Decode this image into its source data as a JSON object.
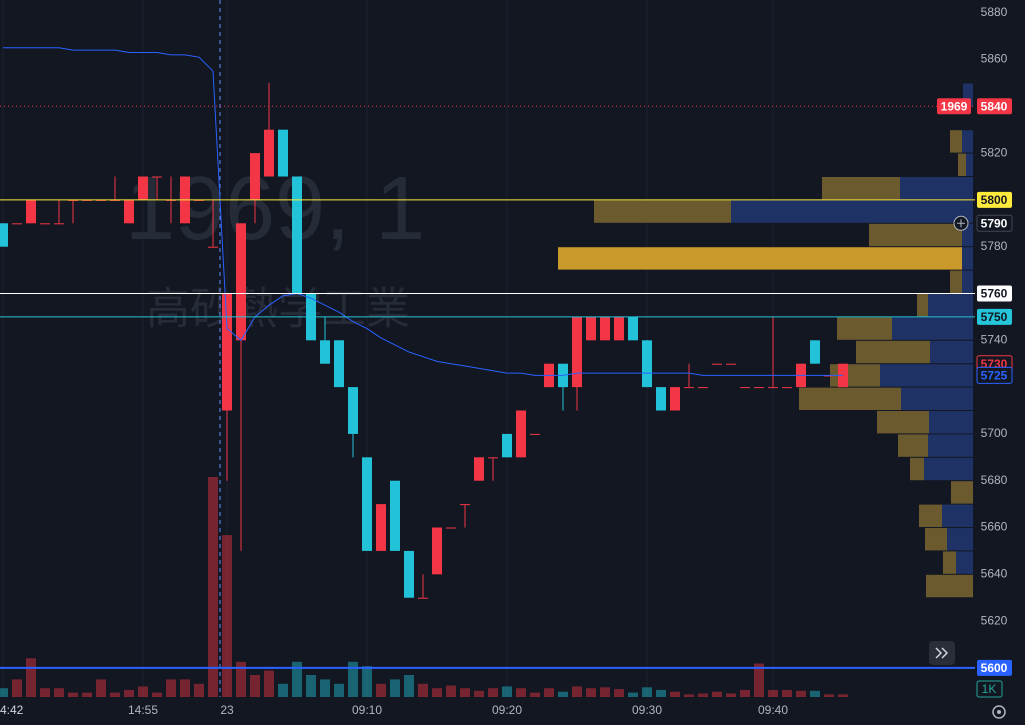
{
  "chart_data": {
    "type": "candlestick",
    "watermark": [
      "1969, 1",
      "高砂熱学工業"
    ],
    "categories": [
      "4:42",
      null,
      null,
      null,
      null,
      null,
      null,
      null,
      null,
      null,
      "14:55",
      null,
      null,
      null,
      null,
      null,
      "23",
      null,
      null,
      null,
      null,
      null,
      null,
      null,
      null,
      null,
      "09:10",
      null,
      null,
      null,
      null,
      null,
      null,
      null,
      null,
      null,
      "09:20",
      null,
      null,
      null,
      null,
      null,
      null,
      null,
      null,
      null,
      "09:30",
      null,
      null,
      null,
      null,
      null,
      null,
      null,
      null,
      "09:40",
      null,
      null,
      null,
      null,
      null
    ],
    "open": [
      5790,
      5790,
      5790,
      5790,
      5790,
      5800,
      5800,
      5800,
      5800,
      5790,
      5800,
      5810,
      5800,
      5790,
      5800,
      5780,
      5710,
      5740,
      5800,
      5810,
      5830,
      5810,
      5760,
      5740,
      5740,
      5720,
      5690,
      5650,
      5680,
      5650,
      5630,
      5640,
      5660,
      5670,
      5680,
      5690,
      5700,
      5690,
      5700,
      5720,
      5730,
      5720,
      5740,
      5740,
      5740,
      5750,
      5740,
      5720,
      5710,
      5720,
      5720,
      5730,
      5730,
      5720,
      5720,
      5720,
      5720,
      5720,
      5740,
      5725,
      5720
    ],
    "high": [
      5790,
      5790,
      5800,
      5790,
      5800,
      5800,
      5800,
      5800,
      5810,
      5800,
      5810,
      5810,
      5810,
      5810,
      5800,
      5800,
      5760,
      5790,
      5820,
      5850,
      5830,
      5810,
      5760,
      5750,
      5740,
      5720,
      5690,
      5670,
      5680,
      5650,
      5640,
      5660,
      5660,
      5670,
      5690,
      5690,
      5700,
      5710,
      5700,
      5730,
      5730,
      5750,
      5750,
      5750,
      5750,
      5750,
      5740,
      5720,
      5720,
      5730,
      5720,
      5730,
      5730,
      5720,
      5720,
      5750,
      5720,
      5730,
      5740,
      5725,
      5730
    ],
    "low": [
      5780,
      5790,
      5790,
      5790,
      5790,
      5790,
      5800,
      5800,
      5800,
      5790,
      5800,
      5800,
      5790,
      5790,
      5800,
      5780,
      5680,
      5650,
      5790,
      5810,
      5810,
      5760,
      5740,
      5730,
      5720,
      5690,
      5650,
      5650,
      5650,
      5630,
      5630,
      5640,
      5660,
      5660,
      5680,
      5680,
      5690,
      5690,
      5700,
      5720,
      5710,
      5710,
      5740,
      5740,
      5740,
      5740,
      5720,
      5710,
      5710,
      5720,
      5720,
      5730,
      5730,
      5720,
      5720,
      5720,
      5720,
      5720,
      5730,
      5725,
      5720
    ],
    "close": [
      5780,
      5790,
      5800,
      5790,
      5790,
      5800,
      5800,
      5800,
      5800,
      5800,
      5810,
      5810,
      5800,
      5810,
      5800,
      5780,
      5760,
      5790,
      5820,
      5830,
      5810,
      5760,
      5740,
      5730,
      5720,
      5700,
      5650,
      5670,
      5650,
      5630,
      5630,
      5660,
      5660,
      5670,
      5690,
      5690,
      5690,
      5710,
      5700,
      5730,
      5720,
      5750,
      5750,
      5750,
      5750,
      5740,
      5720,
      5710,
      5720,
      5720,
      5720,
      5730,
      5730,
      5720,
      5720,
      5720,
      5720,
      5730,
      5730,
      5725,
      5730
    ],
    "vwap": [
      5865,
      5865,
      5865,
      5865,
      5865,
      5864,
      5864,
      5864,
      5864,
      5863,
      5863,
      5863,
      5862,
      5862,
      5861,
      5855,
      5745,
      5740,
      5750,
      5755,
      5759,
      5760,
      5758,
      5755,
      5752,
      5748,
      5745,
      5741,
      5738,
      5735,
      5733,
      5731,
      5730,
      5729,
      5728,
      5727,
      5726,
      5726,
      5725,
      5725,
      5725,
      5726,
      5726,
      5726,
      5726,
      5726,
      5726,
      5726,
      5726,
      5726,
      5725,
      5725,
      5725,
      5725,
      5725,
      5725,
      5725,
      5725,
      5725,
      5725,
      5725
    ],
    "vwap_color": "#2962ff",
    "up_color": "#f23645",
    "down_color": "#22c3d8",
    "volume": [
      1,
      2,
      4.4,
      1,
      1,
      0.5,
      0.5,
      2,
      0.5,
      0.8,
      1.2,
      0.5,
      2,
      2,
      1.5,
      25,
      18.4,
      4,
      2.5,
      3,
      1.5,
      4,
      2.5,
      2,
      1.5,
      4,
      3.5,
      1.5,
      2,
      2.5,
      1.5,
      1,
      1.3,
      1,
      0.7,
      1,
      1.2,
      1,
      0.5,
      1,
      0.6,
      1.2,
      1,
      1.1,
      0.9,
      0.5,
      1.1,
      0.8,
      0.6,
      0.3,
      0.4,
      0.6,
      0.4,
      0.8,
      3.8,
      0.8,
      0.8,
      0.7,
      0.7,
      0.3,
      0.3
    ],
    "vlim": [
      0,
      25
    ],
    "volume_label": "1K",
    "ylim": [
      5588,
      5885
    ],
    "yticks": [
      5880,
      5860,
      5820,
      5780,
      5740,
      5700,
      5680,
      5660,
      5640,
      5620
    ],
    "grid": true,
    "profile": {
      "prices": [
        5845,
        5825,
        5815,
        5805,
        5795,
        5785,
        5775,
        5765,
        5755,
        5745,
        5735,
        5725,
        5715,
        5705,
        5695,
        5685,
        5675,
        5665,
        5655,
        5645,
        5635
      ],
      "gold": [
        0,
        12,
        8,
        78,
        137,
        93,
        404,
        12,
        11,
        55,
        74,
        50,
        102,
        52,
        30,
        14,
        22,
        23,
        22,
        13,
        47
      ],
      "blue": [
        10,
        11,
        7,
        73,
        242,
        11,
        11,
        11,
        45,
        81,
        43,
        93,
        72,
        44,
        45,
        49,
        0,
        31,
        26,
        17,
        0
      ],
      "gold_color": "#6b5a2e",
      "blue_color": "#1f3266",
      "highlight_color": "#c9992c"
    },
    "levels": [
      {
        "value": 5840,
        "label": "5840",
        "tag": "1969",
        "color": "#f23645",
        "line": "dotted"
      },
      {
        "value": 5800,
        "label": "5800",
        "color": "#ffeb3b",
        "line": "solid"
      },
      {
        "value": 5790,
        "label": "5790",
        "color": "#131722",
        "line": "none"
      },
      {
        "value": 5760,
        "label": "5760",
        "color": "#ffffff",
        "line": "solid"
      },
      {
        "value": 5750,
        "label": "5750",
        "color": "#26c6da",
        "line": "solid"
      },
      {
        "value": 5730,
        "label": "5730",
        "color": "#f23645",
        "line": "outline"
      },
      {
        "value": 5725,
        "label": "5725",
        "color": "#2962ff",
        "line": "outline"
      },
      {
        "value": 5600,
        "label": "5600",
        "color": "#2962ff",
        "line": "solid"
      }
    ]
  }
}
